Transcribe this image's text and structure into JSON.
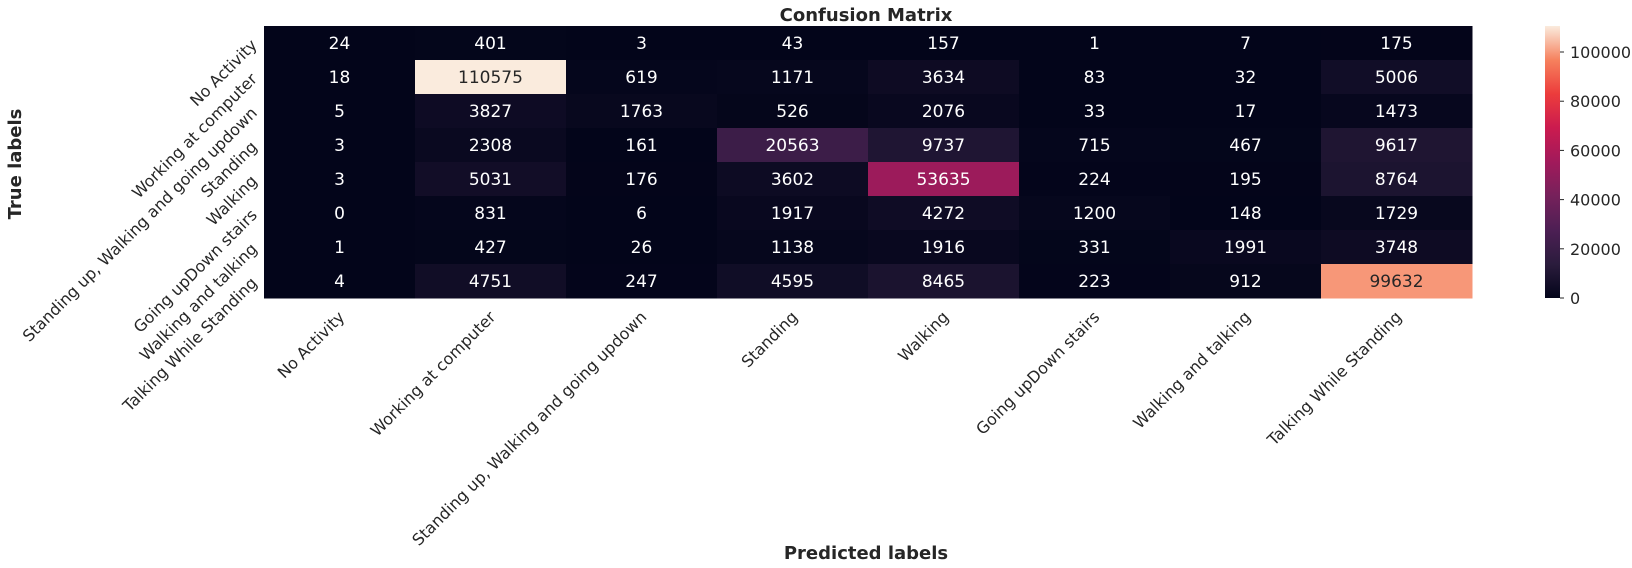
{
  "chart_data": {
    "type": "heatmap",
    "title": "Confusion Matrix",
    "xlabel": "Predicted labels",
    "ylabel": "True labels",
    "x_categories": [
      "No Activity",
      "Working at computer",
      "Standing up, Walking and going updown",
      "Standing",
      "Walking",
      "Going upDown stairs",
      "Walking and talking",
      "Talking While Standing"
    ],
    "y_categories": [
      "No Activity",
      "Working at computer",
      "Standing up, Walking and going updown",
      "Standing",
      "Walking",
      "Going upDown stairs",
      "Walking and talking",
      "Talking While Standing"
    ],
    "values": [
      [
        24,
        401,
        3,
        43,
        157,
        1,
        7,
        175
      ],
      [
        18,
        110575,
        619,
        1171,
        3634,
        83,
        32,
        5006
      ],
      [
        5,
        3827,
        1763,
        526,
        2076,
        33,
        17,
        1473
      ],
      [
        3,
        2308,
        161,
        20563,
        9737,
        715,
        467,
        9617
      ],
      [
        3,
        5031,
        176,
        3602,
        53635,
        224,
        195,
        8764
      ],
      [
        0,
        831,
        6,
        1917,
        4272,
        1200,
        148,
        1729
      ],
      [
        1,
        427,
        26,
        1138,
        1916,
        331,
        1991,
        3748
      ],
      [
        4,
        4751,
        247,
        4595,
        8465,
        223,
        912,
        99632
      ]
    ],
    "colorbar": {
      "colormap": "rocket",
      "range": [
        0,
        110575
      ],
      "ticks": [
        0,
        20000,
        40000,
        60000,
        80000,
        100000
      ]
    }
  }
}
